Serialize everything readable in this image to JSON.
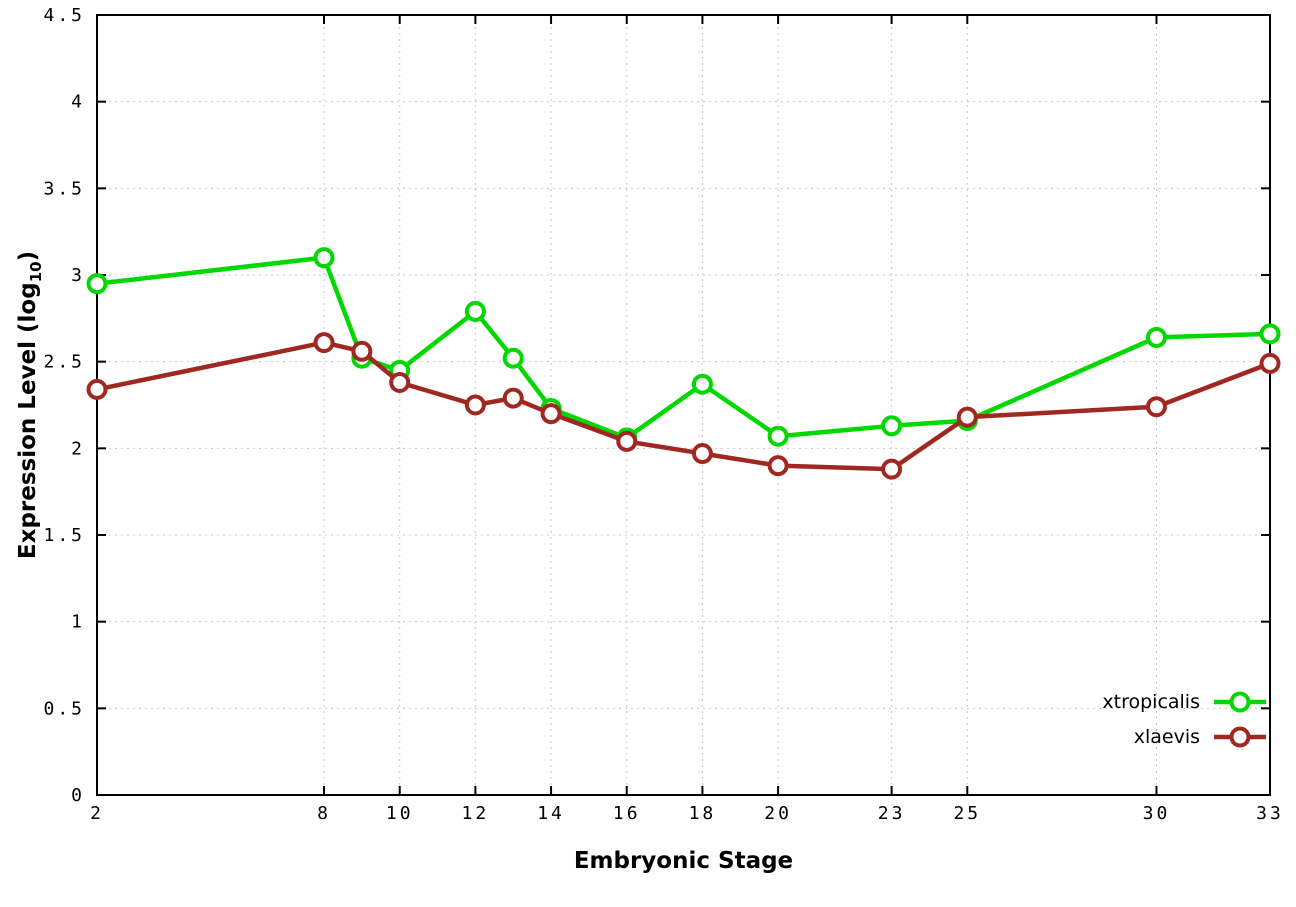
{
  "chart_data": {
    "type": "line",
    "title": "",
    "xlabel": "Embryonic Stage",
    "ylabel": "Expression Level (log10)",
    "ylabel_parts": {
      "main": "Expression Level (log",
      "sub": "10",
      "close": ")"
    },
    "xlim": [
      2,
      33
    ],
    "ylim": [
      0,
      4.5
    ],
    "grid": true,
    "legend_position": "bottom-right",
    "xtick_values": [
      2,
      8,
      10,
      12,
      14,
      16,
      18,
      20,
      23,
      25,
      30,
      33
    ],
    "xtick_labels": [
      "2",
      "8",
      "10",
      "12",
      "14",
      "16",
      "18",
      "20",
      "23",
      "25",
      "30",
      "33"
    ],
    "ytick_values": [
      0,
      0.5,
      1,
      1.5,
      2,
      2.5,
      3,
      3.5,
      4,
      4.5
    ],
    "ytick_labels": [
      "0",
      "0.5",
      "1",
      "1.5",
      "2",
      "2.5",
      "3",
      "3.5",
      "4",
      "4.5"
    ],
    "x": [
      2,
      8,
      9,
      10,
      12,
      13,
      14,
      16,
      18,
      20,
      23,
      25,
      30,
      33
    ],
    "series": [
      {
        "name": "xtropicalis",
        "color": "#00d800",
        "values": [
          2.95,
          3.1,
          2.52,
          2.45,
          2.79,
          2.52,
          2.23,
          2.06,
          2.37,
          2.07,
          2.13,
          2.16,
          2.64,
          2.66
        ]
      },
      {
        "name": "xlaevis",
        "color": "#a02820",
        "values": [
          2.34,
          2.61,
          2.56,
          2.38,
          2.25,
          2.29,
          2.2,
          2.04,
          1.97,
          1.9,
          1.88,
          2.18,
          2.24,
          2.49
        ]
      }
    ],
    "colors": {
      "grid": "#c8c8c8",
      "border": "#000000",
      "text": "#000000"
    }
  }
}
